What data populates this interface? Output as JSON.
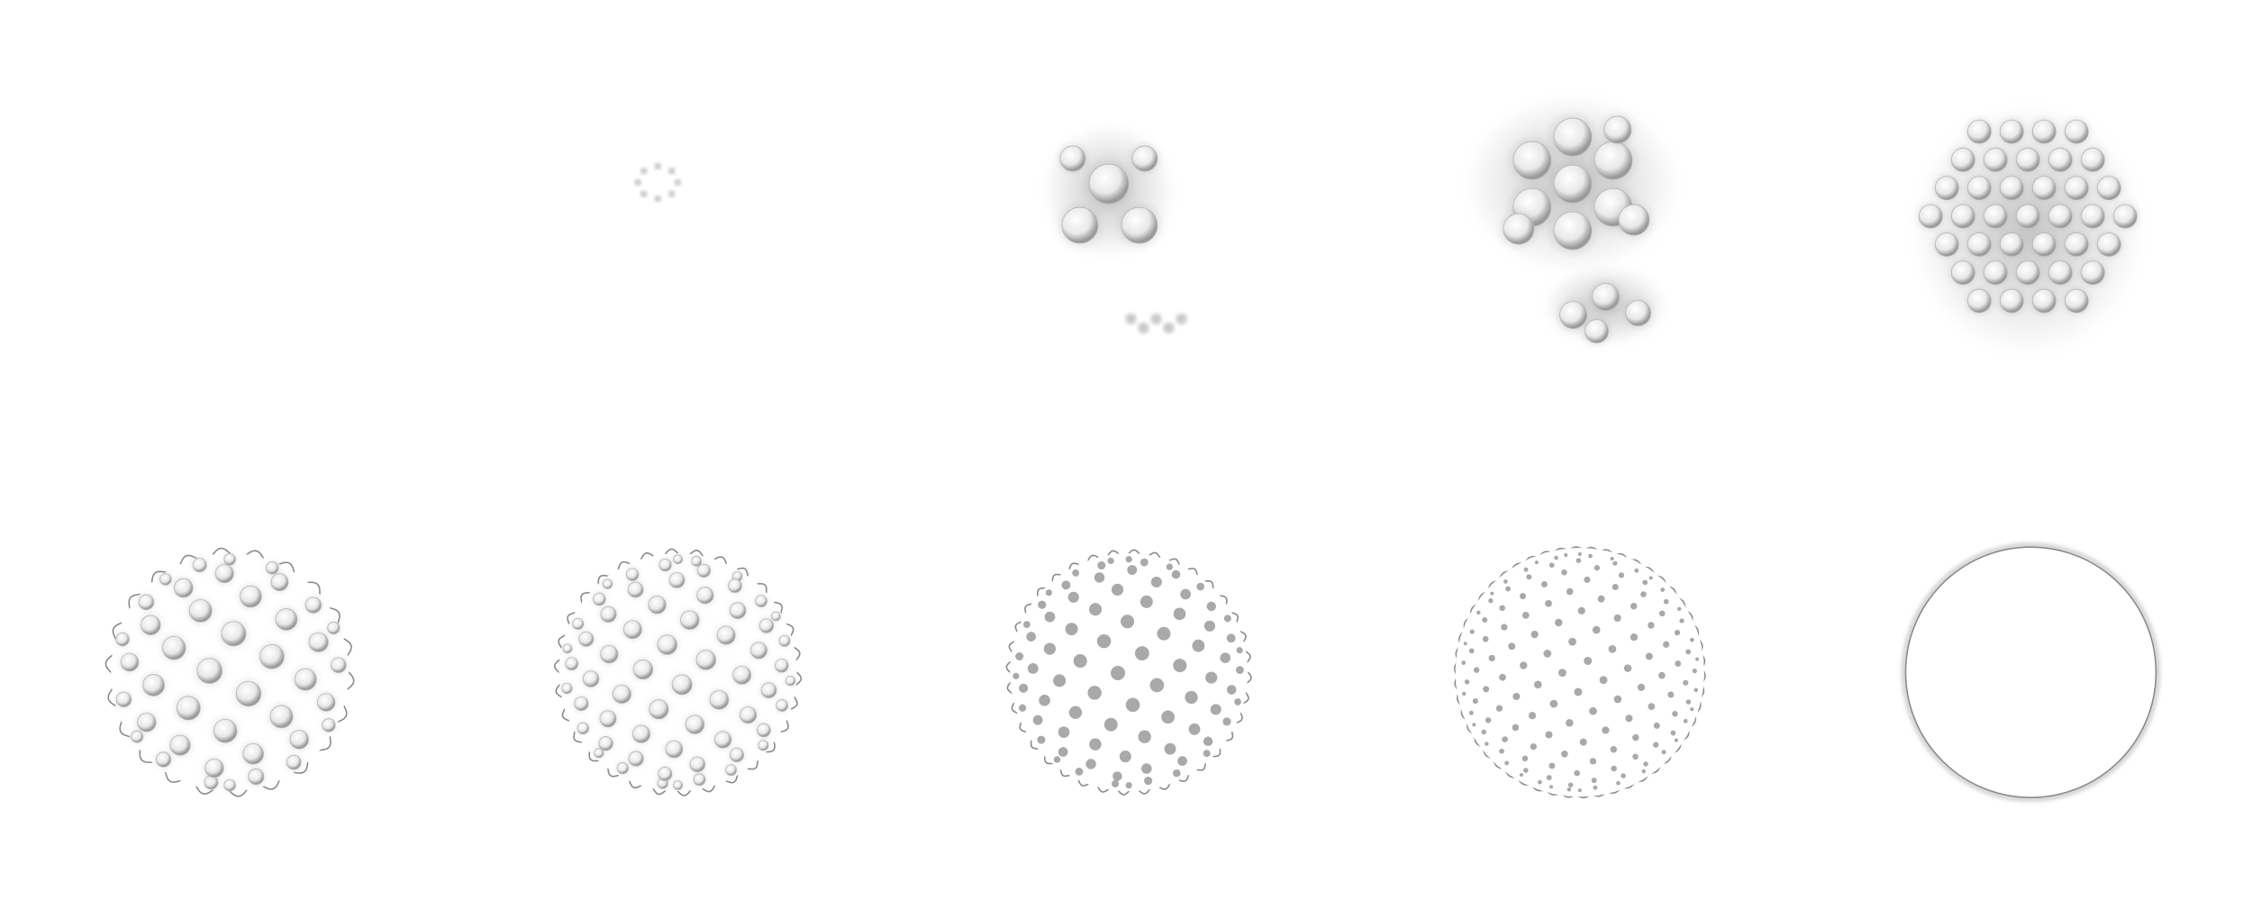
{
  "figure": {
    "description_visible_text": "",
    "background_color": "#ffffff",
    "stroke_color": "#8a8a8a",
    "bump_fill_light": "#ffffff",
    "bump_fill_dark": "#9a9a9a",
    "frames": [
      {
        "id": 1,
        "stage": "tiny-cluster"
      },
      {
        "id": 2,
        "stage": "two-small-clusters"
      },
      {
        "id": 3,
        "stage": "two-growing-clusters"
      },
      {
        "id": 4,
        "stage": "merged-patch"
      },
      {
        "id": 5,
        "stage": "mostly-covered-sphere"
      },
      {
        "id": 6,
        "stage": "fully-covered-sphere-large-bumps"
      },
      {
        "id": 7,
        "stage": "covered-sphere-medium-bumps"
      },
      {
        "id": 8,
        "stage": "covered-sphere-small-dots"
      },
      {
        "id": 9,
        "stage": "plain-sphere-outline"
      },
      {
        "id": 10,
        "stage": "empty"
      }
    ]
  }
}
